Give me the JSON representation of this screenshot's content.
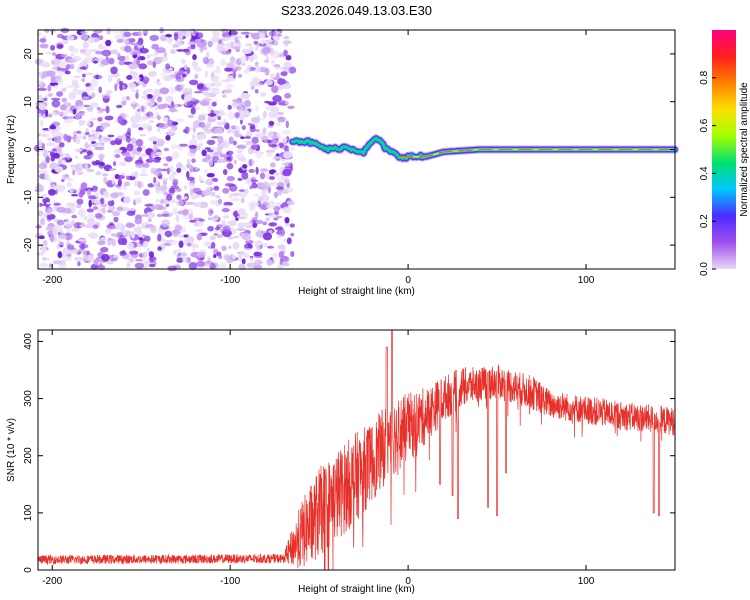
{
  "title": "S233.2026.049.13.03.E30",
  "chart_data": [
    {
      "type": "heatmap",
      "title": "S233.2026.049.13.03.E30",
      "xlabel": "Height of straight line (km)",
      "ylabel": "Frequency (Hz)",
      "xlim": [
        -208,
        150
      ],
      "ylim": [
        -25,
        25
      ],
      "xticks": [
        -200,
        -100,
        0,
        100
      ],
      "yticks": [
        -20,
        -10,
        0,
        10,
        20
      ],
      "xtick_labels": [
        "-200",
        "-100",
        "0",
        "100"
      ],
      "ytick_labels": [
        "-20",
        "-10",
        "0",
        "10",
        "20"
      ],
      "noise_region_x": [
        -208,
        -65
      ],
      "ridge": {
        "description_points_x": [
          -65,
          -55,
          -45,
          -35,
          -25,
          -18,
          -12,
          -5,
          0,
          10,
          20,
          40,
          60,
          100,
          150
        ],
        "frequency_hz": [
          2,
          1.5,
          0,
          0.5,
          -0.5,
          2.5,
          0,
          -1.5,
          -1.5,
          -1.5,
          -0.5,
          0,
          0,
          0,
          0
        ]
      }
    },
    {
      "type": "colorbar",
      "label": "Normalized spectral amplitude",
      "range": [
        0.0,
        1.0
      ],
      "ticks": [
        0.0,
        0.2,
        0.4,
        0.6,
        0.8
      ],
      "tick_labels": [
        "0.0",
        "0.2",
        "0.4",
        "0.6",
        "0.8"
      ],
      "colors": [
        "#e6d8f6",
        "#a050f0",
        "#4a2cff",
        "#00c8ff",
        "#00e070",
        "#a0ff00",
        "#ffe000",
        "#ff8000",
        "#ff2020",
        "#ff0080"
      ]
    },
    {
      "type": "line",
      "xlabel": "Height of straight line (km)",
      "ylabel": "SNR (10 * v/v)",
      "xlim": [
        -208,
        150
      ],
      "ylim": [
        0,
        420
      ],
      "xticks": [
        -200,
        -100,
        0,
        100
      ],
      "yticks": [
        0,
        100,
        200,
        300,
        400
      ],
      "xtick_labels": [
        "-200",
        "-100",
        "0",
        "100"
      ],
      "ytick_labels": [
        "0",
        "100",
        "200",
        "300",
        "400"
      ],
      "line_color": "#e8302a",
      "envelope": {
        "x": [
          -208,
          -70,
          -60,
          -50,
          -40,
          -30,
          -20,
          -10,
          0,
          10,
          20,
          30,
          40,
          50,
          60,
          70,
          80,
          100,
          120,
          150
        ],
        "mean": [
          18,
          20,
          60,
          100,
          130,
          160,
          190,
          230,
          250,
          270,
          300,
          320,
          325,
          330,
          320,
          310,
          290,
          280,
          270,
          260
        ],
        "spread": [
          8,
          8,
          60,
          80,
          80,
          80,
          70,
          70,
          60,
          50,
          40,
          35,
          30,
          30,
          30,
          30,
          25,
          25,
          25,
          25
        ]
      },
      "spikes": [
        {
          "x": -9,
          "y": 420
        },
        {
          "x": -12,
          "y": 390
        }
      ],
      "dips": [
        {
          "x": 18,
          "y": 150
        },
        {
          "x": 25,
          "y": 130
        },
        {
          "x": 28,
          "y": 90
        },
        {
          "x": 45,
          "y": 110
        },
        {
          "x": 50,
          "y": 95
        },
        {
          "x": 55,
          "y": 170
        },
        {
          "x": 138,
          "y": 100
        },
        {
          "x": 141,
          "y": 95
        }
      ]
    }
  ]
}
